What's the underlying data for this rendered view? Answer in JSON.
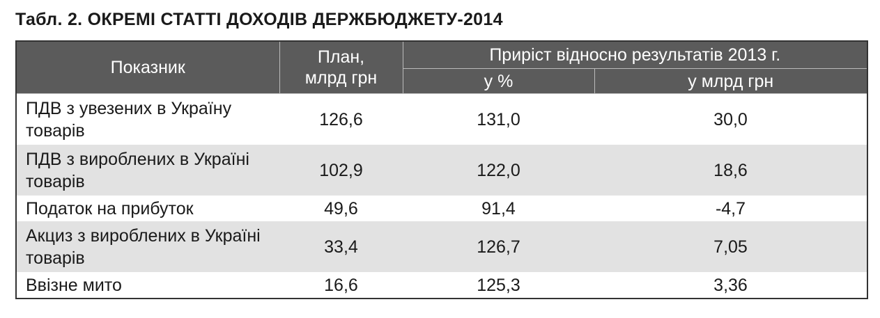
{
  "title": "Табл. 2. ОКРЕМІ СТАТТІ ДОХОДІВ ДЕРЖБЮДЖЕТУ-2014",
  "table": {
    "header": {
      "indicator": "Показник",
      "plan": "План, млрд грн",
      "growth": "Приріст відносно результатів 2013 г.",
      "growth_pct": "у %",
      "growth_bn": "у млрд грн"
    },
    "rows": [
      [
        "ПДВ з увезених в Україну товарів",
        "126,6",
        "131,0",
        "30,0"
      ],
      [
        "ПДВ з вироблених в Україні товарів",
        "102,9",
        "122,0",
        "18,6"
      ],
      [
        "Податок на прибуток",
        "49,6",
        "91,4",
        "-4,7"
      ],
      [
        "Акциз з вироблених в Україні товарів",
        "33,4",
        "126,7",
        "7,05"
      ],
      [
        "Ввізне мито",
        "16,6",
        "125,3",
        "3,36"
      ]
    ]
  }
}
